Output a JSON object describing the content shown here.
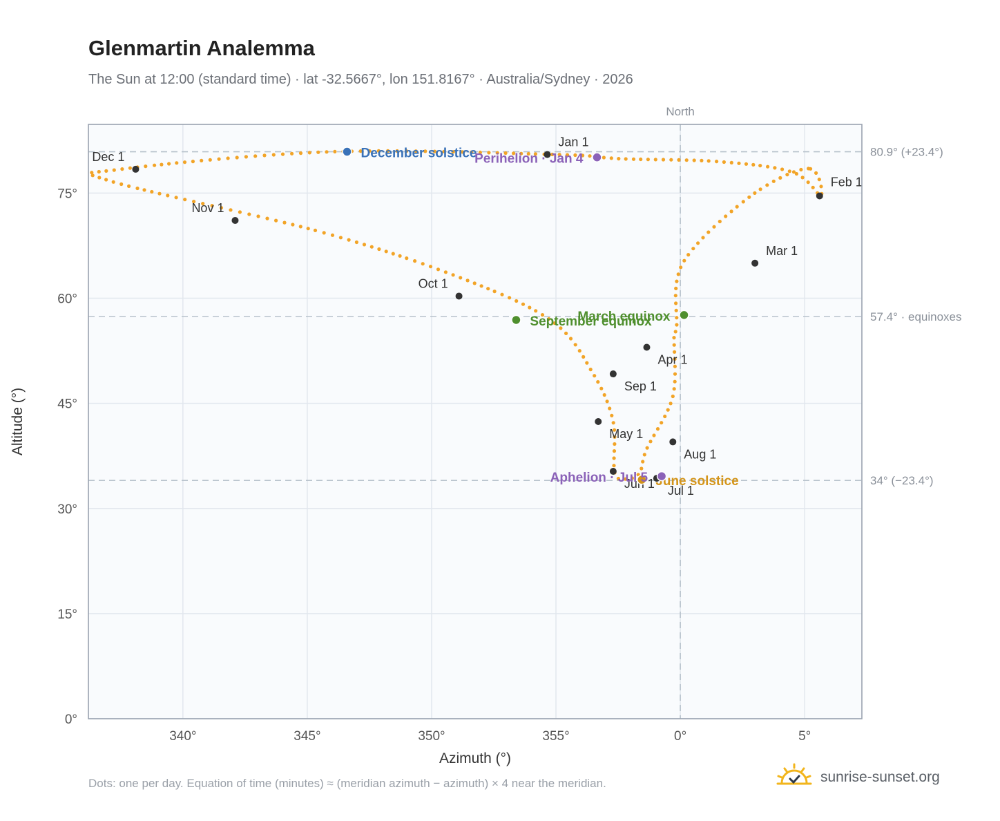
{
  "header": {
    "title": "Glenmartin Analemma",
    "subtitle": "The Sun at 12:00 (standard time) · lat -32.5667°, lon 151.8167° · Australia/Sydney · 2026"
  },
  "footer": {
    "note": "Dots: one per day. Equation of time (minutes) ≈ (meridian azimuth − azimuth) × 4 near the meridian.",
    "brand": "sunrise-sunset.org",
    "brand_icon": "sun-icon"
  },
  "colors": {
    "curve": "#f2a427",
    "month_marker": "#333333",
    "december_solstice": "#3a72b8",
    "june_solstice": "#d4951a",
    "equinox": "#4f8f2e",
    "apsis": "#8b62b8",
    "plot_bg": "#f9fbfd"
  },
  "chart_data": {
    "type": "scatter",
    "title": "Glenmartin Analemma",
    "xlabel": "Azimuth (°)",
    "ylabel": "Altitude (°)",
    "xlim": [
      -23.8,
      7.3
    ],
    "ylim": [
      0,
      84.8
    ],
    "grid": true,
    "x_ticks": [
      -20,
      -15,
      -10,
      -5,
      0,
      5
    ],
    "x_tick_labels": [
      "340°",
      "345°",
      "350°",
      "355°",
      "0°",
      "5°"
    ],
    "y_ticks": [
      0,
      15,
      30,
      45,
      60,
      75
    ],
    "y_tick_labels": [
      "0°",
      "15°",
      "30°",
      "45°",
      "60°",
      "75°"
    ],
    "top_label": "North",
    "reference_lines": [
      {
        "y": 80.9,
        "label": "80.9° (+23.4°)"
      },
      {
        "y": 57.4,
        "label": "57.4° · equinoxes"
      },
      {
        "y": 34.0,
        "label": "34° (−23.4°)"
      }
    ],
    "series": [
      {
        "name": "",
        "x": [
          5.15,
          2.8,
          0.1,
          -0.15,
          -0.25,
          -0.3,
          -1.35,
          -1.65,
          -2.25,
          -2.65,
          -2.7,
          -3.5,
          -5.15,
          -8.9,
          -14.5,
          -22.9,
          -22.5,
          -14.0,
          -5.0,
          -2.4,
          1.5,
          4.5,
          5.65
        ],
        "y": [
          78.5,
          74.5,
          65.0,
          56.0,
          54.5,
          46.0,
          38.5,
          35.0,
          34.2,
          35.3,
          42.4,
          49.2,
          56.7,
          63.0,
          69.5,
          76.7,
          78.4,
          80.9,
          80.5,
          79.9,
          79.5,
          78.0,
          74.6
        ]
      }
    ],
    "month_markers": [
      {
        "label": "Jan 1",
        "x": -5.35,
        "y": 80.5
      },
      {
        "label": "Feb 1",
        "x": 5.6,
        "y": 74.6
      },
      {
        "label": "Mar 1",
        "x": 3.0,
        "y": 65.0
      },
      {
        "label": "Apr 1",
        "x": -1.35,
        "y": 53.0
      },
      {
        "label": "May 1",
        "x": -3.3,
        "y": 42.4
      },
      {
        "label": "Jun 1",
        "x": -2.7,
        "y": 35.3
      },
      {
        "label": "Jul 1",
        "x": -0.95,
        "y": 34.3
      },
      {
        "label": "Aug 1",
        "x": -0.3,
        "y": 39.5
      },
      {
        "label": "Sep 1",
        "x": -2.7,
        "y": 49.2
      },
      {
        "label": "Oct 1",
        "x": -8.9,
        "y": 60.3
      },
      {
        "label": "Nov 1",
        "x": -17.9,
        "y": 71.1
      },
      {
        "label": "Dec 1",
        "x": -21.9,
        "y": 78.4
      }
    ],
    "events": [
      {
        "label": "December solstice",
        "x": -13.4,
        "y": 80.9,
        "kind": "december_solstice"
      },
      {
        "label": "Perihelion · Jan 4",
        "x": -3.35,
        "y": 80.1,
        "kind": "apsis"
      },
      {
        "label": "March equinox",
        "x": 0.15,
        "y": 57.6,
        "kind": "equinox"
      },
      {
        "label": "September equinox",
        "x": -6.6,
        "y": 56.9,
        "kind": "equinox"
      },
      {
        "label": "June solstice",
        "x": -1.55,
        "y": 34.1,
        "kind": "june_solstice"
      },
      {
        "label": "Aphelion · Jul 5",
        "x": -0.75,
        "y": 34.6,
        "kind": "apsis"
      }
    ]
  }
}
